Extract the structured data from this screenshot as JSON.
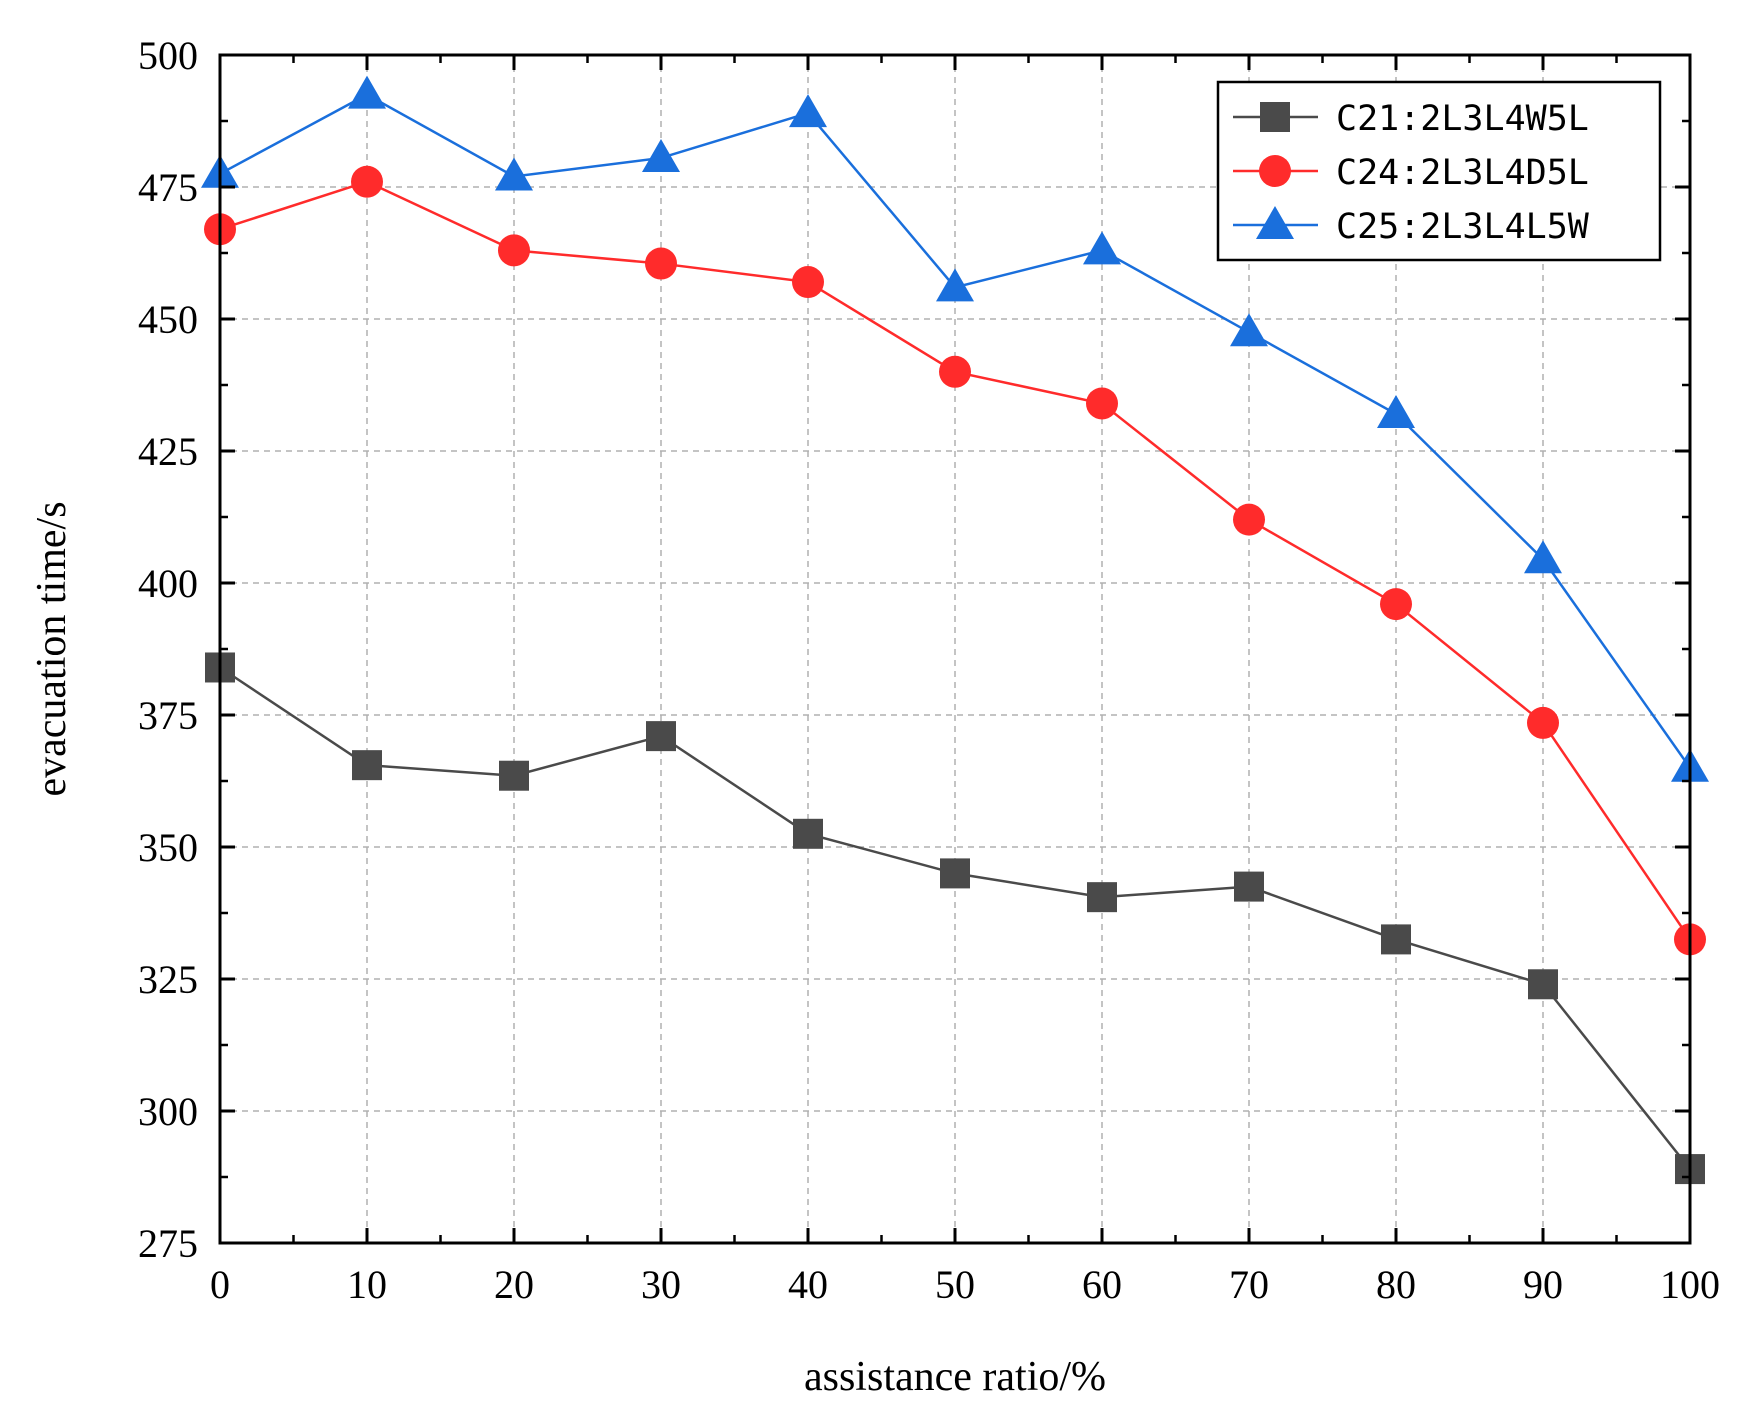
{
  "chart_data": {
    "type": "line",
    "title": "",
    "xlabel": "assistance ratio/%",
    "ylabel": "evacuation time/s",
    "xlim": [
      0,
      100
    ],
    "ylim": [
      275,
      500
    ],
    "x": [
      0,
      10,
      20,
      30,
      40,
      50,
      60,
      70,
      80,
      90,
      100
    ],
    "x_ticks": [
      "0",
      "10",
      "20",
      "30",
      "40",
      "50",
      "60",
      "70",
      "80",
      "90",
      "100"
    ],
    "y_ticks": [
      "275",
      "300",
      "325",
      "350",
      "375",
      "400",
      "425",
      "450",
      "475",
      "500"
    ],
    "grid": true,
    "legend_position": "top-right",
    "series": [
      {
        "name": "C21:2L3L4W5L",
        "marker": "square",
        "color": "#4a4a4a",
        "values": [
          384,
          365.5,
          363.5,
          371,
          352.5,
          345,
          340.5,
          342.5,
          332.5,
          324,
          289
        ]
      },
      {
        "name": "C24:2L3L4D5L",
        "marker": "circle",
        "color": "#ff2b2b",
        "values": [
          467,
          476,
          463,
          460.5,
          457,
          440,
          434,
          412,
          396,
          373.5,
          332.5
        ]
      },
      {
        "name": "C25:2L3L4L5W",
        "marker": "triangle",
        "color": "#1a6fdc",
        "values": [
          477.5,
          492.5,
          477,
          480.5,
          489,
          456,
          463,
          447.5,
          432,
          404.5,
          365
        ]
      }
    ]
  }
}
